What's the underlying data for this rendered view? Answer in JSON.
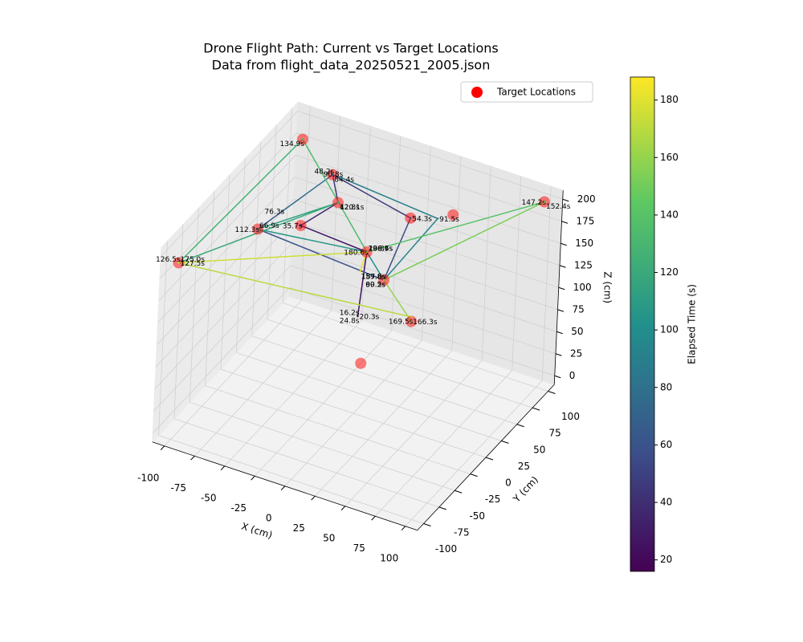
{
  "chart_data": {
    "type": "scatter3d",
    "title": "Drone Flight Path: Current vs Target Locations",
    "subtitle": "Data from flight_data_20250521_2005.json",
    "xlabel": "X (cm)",
    "ylabel": "Y (cm)",
    "zlabel": "Z (cm)",
    "xlim": [
      -110,
      110
    ],
    "ylim": [
      -110,
      110
    ],
    "zlim": [
      -10,
      210
    ],
    "xticks": [
      -100,
      -75,
      -50,
      -25,
      0,
      25,
      50,
      75,
      100
    ],
    "yticks": [
      -100,
      -75,
      -50,
      -25,
      0,
      25,
      50,
      75,
      100
    ],
    "zticks": [
      0,
      25,
      50,
      75,
      100,
      125,
      150,
      175,
      200
    ],
    "grid": true,
    "legend": "upper right",
    "colorbar": {
      "label": "Elapsed Time (s)",
      "colormap": "viridis",
      "lim": [
        16,
        188
      ],
      "ticks": [
        20,
        40,
        60,
        80,
        100,
        120,
        140,
        160,
        180
      ]
    },
    "path": {
      "x": [
        0,
        0,
        0,
        5,
        -50,
        -30,
        -50,
        25,
        20,
        -85,
        -70,
        -50,
        -45,
        40,
        20,
        5,
        -85,
        -30,
        -100,
        -100,
        -100,
        5,
        100,
        100,
        20,
        12,
        12,
        -100,
        5,
        0
      ],
      "y": [
        0,
        0,
        0,
        0,
        0,
        20,
        50,
        30,
        0,
        0,
        10,
        50,
        55,
        45,
        0,
        0,
        0,
        20,
        -100,
        -100,
        100,
        0,
        100,
        100,
        0,
        66,
        66,
        -100,
        0,
        0
      ],
      "z": [
        100,
        100,
        100,
        175,
        180,
        200,
        200,
        200,
        150,
        160,
        180,
        200,
        195,
        195,
        150,
        175,
        160,
        200,
        190,
        190,
        180,
        175,
        200,
        200,
        150,
        50,
        55,
        190,
        175,
        150
      ],
      "t": [
        16.2,
        20.3,
        24.8,
        29.3,
        35.7,
        42.8,
        48.2,
        54.3,
        60.5,
        66.9,
        76.3,
        84.4,
        90.8,
        91.5,
        99.2,
        106.7,
        112.3,
        120.1,
        126.5,
        127.5,
        134.9,
        139.6,
        147.2,
        152.4,
        159.8,
        166.3,
        169.5,
        175.0,
        180.6,
        187.6
      ],
      "value_labels": [
        "16.2s",
        "20.3s",
        "24.8s",
        "29.3s",
        "35.7s",
        "42.8s",
        "48.2s",
        "54.3s",
        "60.5s",
        "66.9s",
        "76.3s",
        "84.4s",
        "90.8s",
        "91.5s",
        "99.2s",
        "106.7s",
        "112.3s",
        "120.1s",
        "126.5s",
        "127.5s",
        "134.9s",
        "139.6s",
        "147.2s",
        "152.4s",
        "159.8s",
        "166.3s",
        "169.5s",
        "175.0s",
        "180.6s",
        "187.6s"
      ]
    },
    "targets": {
      "name": "Target Locations",
      "color": "red",
      "x": [
        -20,
        12,
        -100,
        5,
        20,
        -50,
        50,
        100,
        25,
        -30,
        -50,
        -100,
        -85
      ],
      "y": [
        50,
        66,
        -100,
        0,
        0,
        0,
        50,
        100,
        30,
        20,
        50,
        100,
        0
      ],
      "z": [
        0,
        50,
        190,
        175,
        150,
        180,
        200,
        200,
        200,
        200,
        200,
        180,
        160
      ]
    }
  }
}
